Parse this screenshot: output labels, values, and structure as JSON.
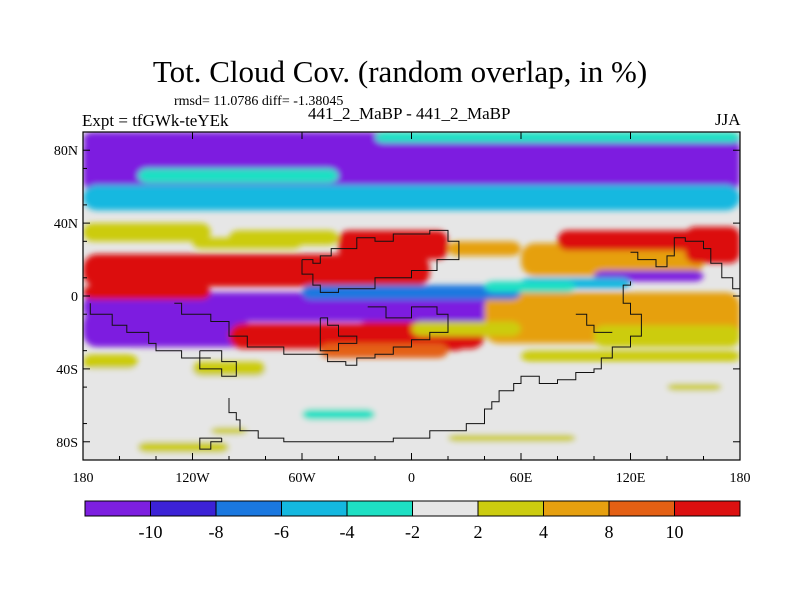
{
  "title": "Tot. Cloud Cov. (random overlap, in %)",
  "stats": "rmsd= 11.0786 diff= -1.38045",
  "left_label": "Expt = tfGWk-teYEk",
  "center_label": "441_2_MaBP - 441_2_MaBP",
  "right_label": "JJA",
  "chart_data": {
    "type": "heatmap",
    "projection": "cylindrical-equidistant",
    "xlim": [
      -180,
      180
    ],
    "ylim": [
      -90,
      90
    ],
    "x_ticks": [
      {
        "value": -180,
        "label": "180"
      },
      {
        "value": -120,
        "label": "120W"
      },
      {
        "value": -60,
        "label": "60W"
      },
      {
        "value": 0,
        "label": "0"
      },
      {
        "value": 60,
        "label": "60E"
      },
      {
        "value": 120,
        "label": "120E"
      },
      {
        "value": 180,
        "label": "180"
      }
    ],
    "y_ticks": [
      {
        "value": 80,
        "label": "80N"
      },
      {
        "value": 40,
        "label": "40N"
      },
      {
        "value": 0,
        "label": "0"
      },
      {
        "value": -40,
        "label": "40S"
      },
      {
        "value": -80,
        "label": "80S"
      }
    ],
    "colorbar": {
      "levels": [
        -10,
        -8,
        -6,
        -4,
        -2,
        2,
        4,
        8,
        10
      ],
      "labels": [
        "-10",
        "-8",
        "-6",
        "-4",
        "-2",
        "2",
        "4",
        "8",
        "10"
      ],
      "colors": [
        "#7d1fe0",
        "#3c22d6",
        "#1a78e0",
        "#14b8e0",
        "#1ee0c4",
        "#e6e6e6",
        "#cccc10",
        "#e6a010",
        "#e46014",
        "#dc1010"
      ]
    },
    "features": [
      {
        "name": "northern purple band",
        "value": -11,
        "lon": [
          -180,
          180
        ],
        "lat_center": 72,
        "lat_halfwidth": 16
      },
      {
        "name": "northern cyan band",
        "value": -5,
        "lon": [
          -180,
          180
        ],
        "lat_center": 54,
        "lat_halfwidth": 7
      },
      {
        "name": "pacific red band",
        "value": 11,
        "lon": [
          -180,
          10
        ],
        "lat_center": 14,
        "lat_halfwidth": 9
      },
      {
        "name": "equatorial purple band",
        "value": -11,
        "lon": [
          -180,
          60
        ],
        "lat_center": -6,
        "lat_halfwidth": 8
      },
      {
        "name": "south pacific purple",
        "value": -11,
        "lon": [
          -180,
          -90
        ],
        "lat_center": -18,
        "lat_halfwidth": 10
      },
      {
        "name": "south atlantic red",
        "value": 11,
        "lon": [
          -100,
          40
        ],
        "lat_center": -22,
        "lat_halfwidth": 7
      },
      {
        "name": "indian ocean orange",
        "value": 7,
        "lon": [
          40,
          180
        ],
        "lat_center": -12,
        "lat_halfwidth": 14
      },
      {
        "name": "asian orange",
        "value": 7,
        "lon": [
          60,
          160
        ],
        "lat_center": 20,
        "lat_halfwidth": 9
      },
      {
        "name": "southern grey",
        "value": 0,
        "lon": [
          -180,
          180
        ],
        "lat_center": -65,
        "lat_halfwidth": 25
      }
    ]
  }
}
